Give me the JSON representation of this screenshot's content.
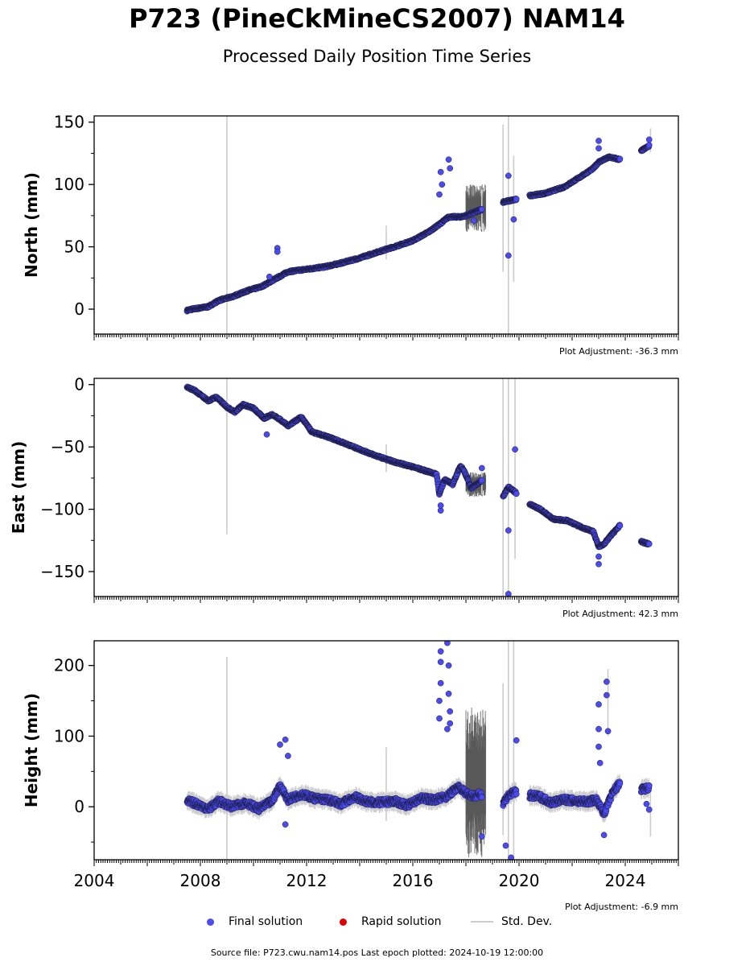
{
  "title": "P723 (PineCkMineCS2007) NAM14",
  "subtitle": "Processed Daily Position Time Series",
  "legend": {
    "final": "Final solution",
    "rapid": "Rapid solution",
    "stddev": "Std. Dev."
  },
  "colors": {
    "final": "#4b4bf0",
    "rapid": "#e00000",
    "stddev": "#cccccc"
  },
  "source": "Source file: P723.cwu.nam14.pos  Last epoch plotted: 2024-10-19 12:00:00",
  "chart_data": [
    {
      "type": "scatter",
      "ylabel": "North (mm)",
      "adjustment": "Plot Adjustment: -36.3 mm",
      "xlim": [
        2004,
        2026
      ],
      "ylim": [
        -20,
        155
      ],
      "yticks": [
        0,
        50,
        100,
        150
      ],
      "segments": [
        [
          2007.5,
          -1
        ],
        [
          2007.7,
          0
        ],
        [
          2008.3,
          2
        ],
        [
          2008.7,
          7
        ],
        [
          2009.2,
          10
        ],
        [
          2009.8,
          15
        ],
        [
          2010.3,
          18
        ],
        [
          2010.8,
          24
        ],
        [
          2011.3,
          30
        ],
        [
          2012.0,
          32
        ],
        [
          2012.7,
          34
        ],
        [
          2013.3,
          37
        ],
        [
          2014.0,
          41
        ],
        [
          2014.7,
          46
        ],
        [
          2015.3,
          50
        ],
        [
          2016.0,
          55
        ],
        [
          2016.6,
          62
        ],
        [
          2017.0,
          68
        ],
        [
          2017.35,
          74
        ],
        [
          2017.8,
          74
        ],
        [
          2018.0,
          75
        ],
        [
          2018.6,
          80
        ],
        [
          null,
          null
        ],
        [
          2019.4,
          86
        ],
        [
          2019.9,
          88
        ],
        [
          null,
          null
        ],
        [
          2020.4,
          91
        ],
        [
          2021.0,
          93
        ],
        [
          2021.7,
          98
        ],
        [
          2022.3,
          106
        ],
        [
          2022.8,
          113
        ],
        [
          2023.0,
          118
        ],
        [
          2023.4,
          122
        ],
        [
          2023.8,
          120
        ],
        [
          null,
          null
        ],
        [
          2024.6,
          127
        ],
        [
          2024.9,
          131
        ]
      ],
      "outliers": [
        [
          2010.9,
          49
        ],
        [
          2010.9,
          46
        ],
        [
          2010.6,
          26
        ],
        [
          2017.05,
          110
        ],
        [
          2017.1,
          100
        ],
        [
          2017.0,
          92
        ],
        [
          2017.35,
          120
        ],
        [
          2017.4,
          113
        ],
        [
          2019.6,
          107
        ],
        [
          2019.6,
          43
        ],
        [
          2019.8,
          72
        ],
        [
          2023.0,
          135
        ],
        [
          2023.0,
          129
        ],
        [
          2024.9,
          136
        ],
        [
          2018.3,
          71
        ]
      ],
      "stddev_spikes": [
        [
          2009.0,
          -20,
          155
        ],
        [
          2015.0,
          40,
          67
        ],
        [
          2019.4,
          30,
          148
        ],
        [
          2019.6,
          -20,
          155
        ],
        [
          2019.8,
          22,
          123
        ],
        [
          2018.6,
          64,
          96
        ],
        [
          2024.95,
          126,
          145
        ]
      ],
      "stddev_dense": [
        [
          2018.0,
          2018.75,
          62,
          100
        ]
      ]
    },
    {
      "type": "scatter",
      "ylabel": "East (mm)",
      "adjustment": "Plot Adjustment: 42.3 mm",
      "xlim": [
        2004,
        2026
      ],
      "ylim": [
        -170,
        5
      ],
      "yticks": [
        0,
        -50,
        -100,
        -150
      ],
      "segments": [
        [
          2007.5,
          -2
        ],
        [
          2007.8,
          -5
        ],
        [
          2008.3,
          -13
        ],
        [
          2008.6,
          -10
        ],
        [
          2009.0,
          -18
        ],
        [
          2009.3,
          -22
        ],
        [
          2009.6,
          -16
        ],
        [
          2010.0,
          -19
        ],
        [
          2010.4,
          -27
        ],
        [
          2010.7,
          -24
        ],
        [
          2011.0,
          -28
        ],
        [
          2011.3,
          -33
        ],
        [
          2011.8,
          -26
        ],
        [
          2012.2,
          -38
        ],
        [
          2012.8,
          -42
        ],
        [
          2013.3,
          -46
        ],
        [
          2014.0,
          -52
        ],
        [
          2014.6,
          -57
        ],
        [
          2015.3,
          -62
        ],
        [
          2016.0,
          -66
        ],
        [
          2016.6,
          -70
        ],
        [
          2016.9,
          -72
        ],
        [
          2017.0,
          -88
        ],
        [
          2017.2,
          -76
        ],
        [
          2017.5,
          -80
        ],
        [
          2017.8,
          -65
        ],
        [
          2017.95,
          -70
        ],
        [
          2018.2,
          -83
        ],
        [
          2018.6,
          -77
        ],
        [
          null,
          null
        ],
        [
          2019.4,
          -90
        ],
        [
          2019.6,
          -82
        ],
        [
          2019.9,
          -87
        ],
        [
          null,
          null
        ],
        [
          2020.4,
          -96
        ],
        [
          2020.8,
          -100
        ],
        [
          2021.3,
          -108
        ],
        [
          2021.8,
          -109
        ],
        [
          2022.3,
          -114
        ],
        [
          2022.8,
          -118
        ],
        [
          2023.0,
          -130
        ],
        [
          2023.2,
          -128
        ],
        [
          2023.5,
          -120
        ],
        [
          2023.8,
          -113
        ],
        [
          null,
          null
        ],
        [
          2024.6,
          -126
        ],
        [
          2024.9,
          -128
        ]
      ],
      "outliers": [
        [
          2010.5,
          -40
        ],
        [
          2017.05,
          -101
        ],
        [
          2017.05,
          -97
        ],
        [
          2018.6,
          -67
        ],
        [
          2019.6,
          -117
        ],
        [
          2019.6,
          -168
        ],
        [
          2019.85,
          -52
        ],
        [
          2023.0,
          -144
        ],
        [
          2023.0,
          -138
        ]
      ],
      "stddev_spikes": [
        [
          2009.0,
          -120,
          5
        ],
        [
          2015.0,
          -70,
          -48
        ],
        [
          2019.4,
          -170,
          5
        ],
        [
          2019.6,
          -170,
          5
        ],
        [
          2019.85,
          -140,
          5
        ],
        [
          2018.6,
          -88,
          -70
        ]
      ],
      "stddev_dense": [
        [
          2018.0,
          2018.75,
          -90,
          -70
        ]
      ]
    },
    {
      "type": "scatter",
      "ylabel": "Height (mm)",
      "adjustment": "Plot Adjustment: -6.9 mm",
      "xlim": [
        2004,
        2026
      ],
      "xticks": [
        "2004",
        "2008",
        "2012",
        "2016",
        "2020",
        "2024"
      ],
      "ylim": [
        -75,
        235
      ],
      "yticks": [
        0,
        100,
        200
      ],
      "segments": [
        [
          2007.5,
          8
        ],
        [
          2007.8,
          5
        ],
        [
          2008.3,
          -3
        ],
        [
          2008.7,
          8
        ],
        [
          2009.2,
          0
        ],
        [
          2009.7,
          6
        ],
        [
          2010.2,
          -3
        ],
        [
          2010.7,
          8
        ],
        [
          2011.0,
          30
        ],
        [
          2011.3,
          10
        ],
        [
          2011.8,
          18
        ],
        [
          2012.3,
          12
        ],
        [
          2012.8,
          10
        ],
        [
          2013.3,
          4
        ],
        [
          2013.8,
          14
        ],
        [
          2014.3,
          7
        ],
        [
          2014.8,
          6
        ],
        [
          2015.3,
          8
        ],
        [
          2015.8,
          2
        ],
        [
          2016.3,
          12
        ],
        [
          2016.8,
          10
        ],
        [
          2017.3,
          15
        ],
        [
          2017.7,
          28
        ],
        [
          2018.0,
          20
        ],
        [
          2018.3,
          15
        ],
        [
          2018.6,
          18
        ],
        [
          null,
          null
        ],
        [
          2019.4,
          6
        ],
        [
          2019.6,
          16
        ],
        [
          2019.9,
          22
        ],
        [
          null,
          null
        ],
        [
          2020.4,
          16
        ],
        [
          2020.8,
          14
        ],
        [
          2021.2,
          6
        ],
        [
          2021.7,
          10
        ],
        [
          2022.2,
          8
        ],
        [
          2022.6,
          7
        ],
        [
          2022.9,
          10
        ],
        [
          2023.2,
          -10
        ],
        [
          2023.5,
          18
        ],
        [
          2023.8,
          34
        ],
        [
          null,
          null
        ],
        [
          2024.6,
          24
        ],
        [
          2024.9,
          27
        ]
      ],
      "outliers": [
        [
          2011.0,
          88
        ],
        [
          2011.2,
          95
        ],
        [
          2011.3,
          72
        ],
        [
          2011.2,
          -25
        ],
        [
          2017.0,
          125
        ],
        [
          2017.0,
          150
        ],
        [
          2017.05,
          175
        ],
        [
          2017.05,
          205
        ],
        [
          2017.05,
          220
        ],
        [
          2017.3,
          232
        ],
        [
          2017.35,
          200
        ],
        [
          2017.35,
          160
        ],
        [
          2017.4,
          135
        ],
        [
          2017.4,
          118
        ],
        [
          2017.3,
          110
        ],
        [
          2018.6,
          -42
        ],
        [
          2019.5,
          -55
        ],
        [
          2019.7,
          -72
        ],
        [
          2019.9,
          94
        ],
        [
          2023.0,
          145
        ],
        [
          2023.0,
          110
        ],
        [
          2023.0,
          85
        ],
        [
          2023.05,
          62
        ],
        [
          2023.3,
          177
        ],
        [
          2023.3,
          158
        ],
        [
          2023.35,
          107
        ],
        [
          2023.2,
          -40
        ],
        [
          2024.9,
          -4
        ],
        [
          2024.8,
          4
        ]
      ],
      "stddev_spikes": [
        [
          2009.0,
          -75,
          212
        ],
        [
          2015.0,
          -20,
          84
        ],
        [
          2019.4,
          -40,
          175
        ],
        [
          2019.6,
          -75,
          235
        ],
        [
          2019.8,
          -75,
          235
        ],
        [
          2023.35,
          100,
          195
        ],
        [
          2024.95,
          -42,
          20
        ]
      ],
      "stddev_dense": [
        [
          2018.0,
          2018.75,
          -75,
          145
        ]
      ]
    }
  ]
}
